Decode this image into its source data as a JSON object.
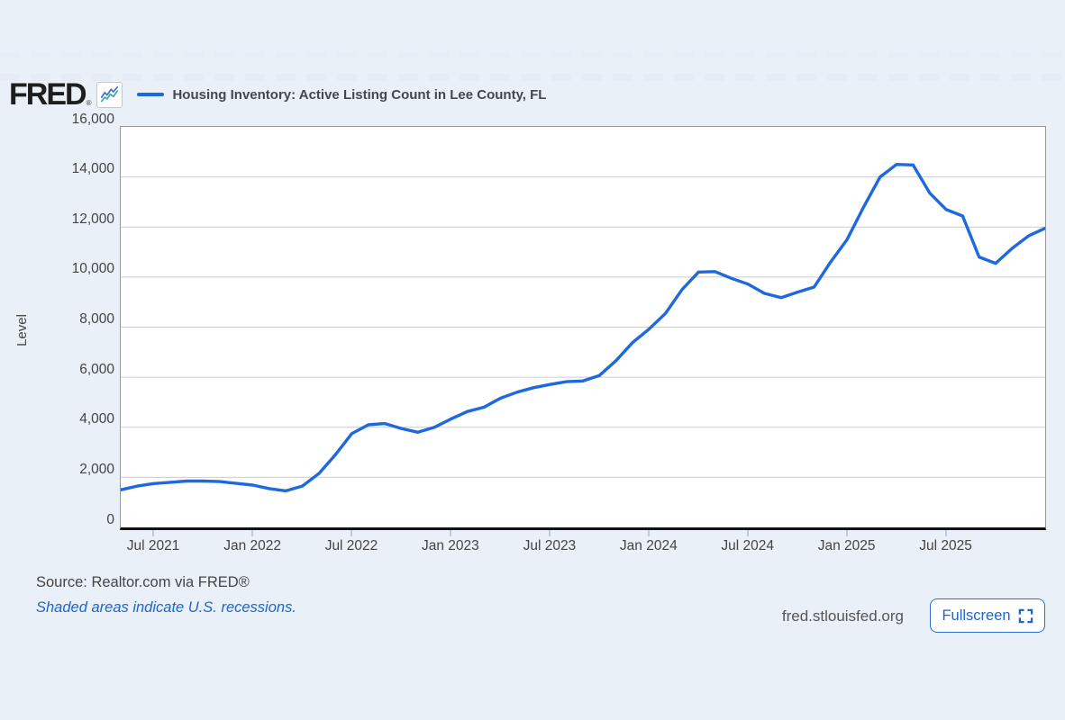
{
  "header": {
    "logo_text": "FRED",
    "logo_reg": "®",
    "legend_label": "Housing Inventory: Active Listing Count in Lee County, FL"
  },
  "footer": {
    "source": "Source: Realtor.com via FRED®",
    "recession_note": "Shaded areas indicate U.S. recessions.",
    "site": "fred.stlouisfed.org",
    "fullscreen_label": "Fullscreen"
  },
  "colors": {
    "line": "#1e69de",
    "link_blue": "#2065c9",
    "background": "#e9f0f8",
    "plot_background": "#ffffff",
    "gridline": "#cccccc",
    "axis_black": "#111111",
    "logo_icon_blue": "#4673d1",
    "logo_icon_green": "#3fae96"
  },
  "chart_data": {
    "type": "line",
    "title": "Housing Inventory: Active Listing Count in Lee County, FL",
    "ylabel": "Level",
    "xlabel": "",
    "ylim": [
      0,
      16000
    ],
    "grid": "horizontal",
    "legend_position": "top-left",
    "frequency": "monthly",
    "y_ticks": [
      0,
      2000,
      4000,
      6000,
      8000,
      10000,
      12000,
      14000,
      16000
    ],
    "x_ticks": [
      {
        "label": "Jul 2021",
        "month_index": 2
      },
      {
        "label": "Jan 2022",
        "month_index": 8
      },
      {
        "label": "Jul 2022",
        "month_index": 14
      },
      {
        "label": "Jan 2023",
        "month_index": 20
      },
      {
        "label": "Jul 2023",
        "month_index": 26
      },
      {
        "label": "Jan 2024",
        "month_index": 32
      },
      {
        "label": "Jul 2024",
        "month_index": 38
      },
      {
        "label": "Jan 2025",
        "month_index": 44
      },
      {
        "label": "Jul 2025",
        "month_index": 50
      }
    ],
    "x": [
      "2021-05",
      "2021-06",
      "2021-07",
      "2021-08",
      "2021-09",
      "2021-10",
      "2021-11",
      "2021-12",
      "2022-01",
      "2022-02",
      "2022-03",
      "2022-04",
      "2022-05",
      "2022-06",
      "2022-07",
      "2022-08",
      "2022-09",
      "2022-10",
      "2022-11",
      "2022-12",
      "2023-01",
      "2023-02",
      "2023-03",
      "2023-04",
      "2023-05",
      "2023-06",
      "2023-07",
      "2023-08",
      "2023-09",
      "2023-10",
      "2023-11",
      "2023-12",
      "2024-01",
      "2024-02",
      "2024-03",
      "2024-04",
      "2024-05",
      "2024-06",
      "2024-07",
      "2024-08",
      "2024-09",
      "2024-10",
      "2024-11",
      "2024-12",
      "2025-01",
      "2025-02",
      "2025-03",
      "2025-04",
      "2025-05",
      "2025-06",
      "2025-07",
      "2025-08",
      "2025-09",
      "2025-10",
      "2025-11",
      "2025-12",
      "2026-01"
    ],
    "values": [
      1500,
      1650,
      1750,
      1800,
      1850,
      1850,
      1830,
      1760,
      1690,
      1550,
      1460,
      1650,
      2150,
      2900,
      3750,
      4100,
      4150,
      3950,
      3800,
      4000,
      4330,
      4630,
      4800,
      5160,
      5400,
      5580,
      5710,
      5820,
      5850,
      6070,
      6660,
      7380,
      7920,
      8550,
      9500,
      10200,
      10220,
      9950,
      9720,
      9350,
      9180,
      9400,
      9600,
      10600,
      11500,
      12800,
      14000,
      14500,
      14480,
      13360,
      12700,
      12440,
      10800,
      10550,
      11150,
      11650,
      11950
    ]
  }
}
